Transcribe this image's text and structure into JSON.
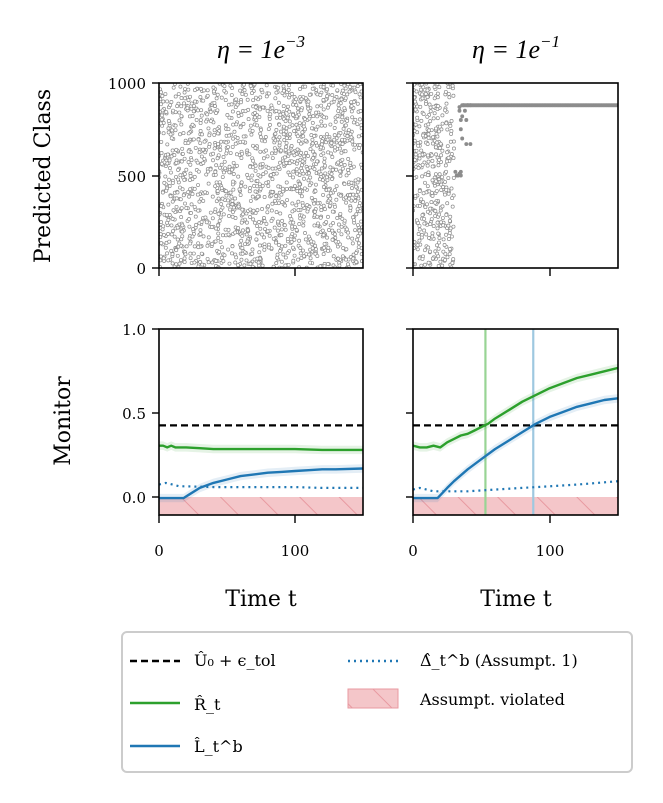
{
  "chart_data": [
    {
      "panel": "top-left",
      "type": "scatter",
      "title": "η = 1e^{-3}",
      "title_base": "η = 1e",
      "title_exp": "−3",
      "ylabel": "Predicted Class",
      "xlim": [
        0,
        150
      ],
      "ylim": [
        0,
        1000
      ],
      "yticks": [
        0,
        500,
        1000
      ],
      "xticks": [
        0,
        100
      ],
      "description_values": "uniformly scattered predicted classes 0-1000 across all time steps 0-150"
    },
    {
      "panel": "top-right",
      "type": "scatter",
      "title": "η = 1e^{-1}",
      "title_base": "η = 1e",
      "title_exp": "−1",
      "xlim": [
        0,
        150
      ],
      "ylim": [
        0,
        1000
      ],
      "xticks": [
        0,
        100
      ],
      "scatter_until_t": 30,
      "collapse_points": [
        {
          "t": 31,
          "y": 520
        },
        {
          "t": 32,
          "y": 500
        },
        {
          "t": 33,
          "y": 500
        },
        {
          "t": 34,
          "y": 510
        },
        {
          "t": 35,
          "y": 520
        },
        {
          "t": 35,
          "y": 500
        },
        {
          "t": 34,
          "y": 870
        },
        {
          "t": 34,
          "y": 850
        },
        {
          "t": 35,
          "y": 800
        },
        {
          "t": 35,
          "y": 750
        },
        {
          "t": 36,
          "y": 700
        },
        {
          "t": 36,
          "y": 820
        },
        {
          "t": 37,
          "y": 880
        },
        {
          "t": 38,
          "y": 850
        },
        {
          "t": 39,
          "y": 800
        },
        {
          "t": 40,
          "y": 880
        },
        {
          "t": 42,
          "y": 880
        },
        {
          "t": 39,
          "y": 670
        },
        {
          "t": 42,
          "y": 670
        }
      ],
      "plateau": {
        "from_t": 36,
        "to_t": 150,
        "y": 880
      }
    },
    {
      "panel": "bottom-left",
      "type": "line",
      "ylabel": "Monitor",
      "xlabel": "Time t",
      "xlim": [
        0,
        150
      ],
      "ylim": [
        -0.1,
        1.0
      ],
      "yticks": [
        0.0,
        0.5,
        1.0
      ],
      "ytick_labels": [
        "0.0",
        "0.5",
        "1.0"
      ],
      "xticks": [
        0,
        100
      ],
      "xtick_labels": [
        "0",
        "100"
      ],
      "threshold": 0.43,
      "series": [
        {
          "name": "R_t",
          "color": "#2ca02c",
          "style": "solid",
          "x": [
            0,
            3,
            6,
            9,
            12,
            15,
            20,
            30,
            40,
            60,
            80,
            100,
            120,
            150
          ],
          "y": [
            0.31,
            0.31,
            0.3,
            0.31,
            0.3,
            0.3,
            0.3,
            0.295,
            0.29,
            0.29,
            0.29,
            0.29,
            0.285,
            0.285
          ]
        },
        {
          "name": "L_t^b",
          "color": "#1f77b4",
          "style": "solid",
          "x": [
            0,
            10,
            18,
            22,
            30,
            40,
            50,
            60,
            70,
            80,
            90,
            100,
            110,
            120,
            130,
            150
          ],
          "y": [
            0.0,
            0.0,
            0.0,
            0.02,
            0.06,
            0.09,
            0.11,
            0.13,
            0.14,
            0.15,
            0.155,
            0.16,
            0.165,
            0.17,
            0.17,
            0.175
          ]
        },
        {
          "name": "Delta_t^b",
          "color": "#1f77b4",
          "style": "dotted",
          "x": [
            0,
            5,
            10,
            15,
            20,
            40,
            60,
            80,
            100,
            120,
            150
          ],
          "y": [
            0.08,
            0.09,
            0.08,
            0.07,
            0.07,
            0.065,
            0.065,
            0.065,
            0.065,
            0.06,
            0.06
          ]
        }
      ],
      "violated_band": [
        -0.1,
        0.0
      ]
    },
    {
      "panel": "bottom-right",
      "type": "line",
      "xlabel": "Time t",
      "xlim": [
        0,
        150
      ],
      "ylim": [
        -0.1,
        1.0
      ],
      "xticks": [
        0,
        100
      ],
      "xtick_labels": [
        "0",
        "100"
      ],
      "threshold": 0.43,
      "vlines": [
        {
          "x": 53,
          "color": "#98d494"
        },
        {
          "x": 88,
          "color": "#9ec8e0"
        }
      ],
      "series": [
        {
          "name": "R_t",
          "color": "#2ca02c",
          "style": "solid",
          "x": [
            0,
            5,
            10,
            15,
            20,
            25,
            30,
            35,
            40,
            45,
            50,
            55,
            60,
            70,
            80,
            90,
            100,
            110,
            120,
            130,
            140,
            150
          ],
          "y": [
            0.31,
            0.3,
            0.3,
            0.31,
            0.3,
            0.33,
            0.35,
            0.37,
            0.38,
            0.4,
            0.42,
            0.44,
            0.47,
            0.52,
            0.57,
            0.61,
            0.65,
            0.68,
            0.71,
            0.73,
            0.75,
            0.77
          ]
        },
        {
          "name": "L_t^b",
          "color": "#1f77b4",
          "style": "solid",
          "x": [
            0,
            10,
            18,
            25,
            30,
            40,
            50,
            60,
            70,
            80,
            90,
            100,
            110,
            120,
            130,
            140,
            150
          ],
          "y": [
            0.0,
            0.0,
            0.0,
            0.06,
            0.1,
            0.17,
            0.23,
            0.29,
            0.34,
            0.39,
            0.44,
            0.48,
            0.51,
            0.54,
            0.56,
            0.58,
            0.59
          ]
        },
        {
          "name": "Delta_t^b",
          "color": "#1f77b4",
          "style": "dotted",
          "x": [
            0,
            5,
            10,
            15,
            20,
            40,
            60,
            80,
            100,
            120,
            150
          ],
          "y": [
            0.05,
            0.06,
            0.05,
            0.04,
            0.04,
            0.04,
            0.05,
            0.06,
            0.07,
            0.08,
            0.1
          ]
        }
      ],
      "violated_band": [
        -0.1,
        0.0
      ]
    }
  ],
  "legend": {
    "position": "bottom-center",
    "entries": [
      {
        "key": "threshold",
        "label": "Û₀ + ϵ_tol",
        "color": "#000000",
        "style": "dashed"
      },
      {
        "key": "R_t",
        "label": "R̂_t",
        "color": "#2ca02c",
        "style": "solid"
      },
      {
        "key": "L_t^b",
        "label": "L̂_t^b",
        "color": "#1f77b4",
        "style": "solid"
      },
      {
        "key": "Delta_t^b",
        "label": "Δ̂_t^b (Assumpt. 1)",
        "color": "#1f77b4",
        "style": "dotted"
      },
      {
        "key": "violated",
        "label": "Assumpt. violated",
        "color": "#f4c6c9",
        "style": "patch"
      }
    ]
  },
  "labels": {
    "top_ylabel": "Predicted Class",
    "bottom_ylabel": "Monitor",
    "xlabel_left": "Time t",
    "xlabel_right": "Time t"
  },
  "colors": {
    "scatter": "#8c8c8c",
    "green": "#2ca02c",
    "blue": "#1f77b4",
    "violated": "#f4c6c9",
    "violated_hatch": "#e89aa1"
  }
}
